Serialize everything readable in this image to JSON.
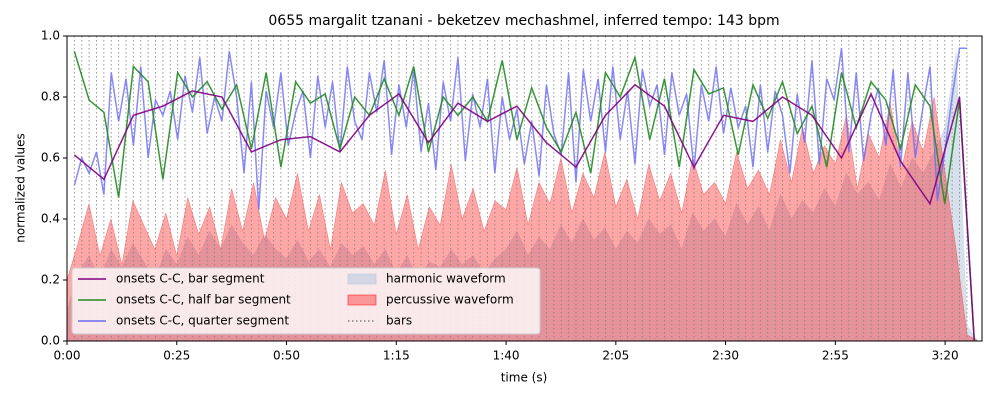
{
  "chart_data": {
    "type": "line",
    "title": "0655 margalit tzanani - beketzev mechashmel, inferred tempo: 143 bpm",
    "x_label": "time (s)",
    "y_label": "normalized values",
    "xlim": [
      0,
      208.4
    ],
    "ylim": [
      0,
      1
    ],
    "xticks": [
      {
        "value": 0,
        "label": "0:00"
      },
      {
        "value": 25,
        "label": "0:25"
      },
      {
        "value": 50,
        "label": "0:50"
      },
      {
        "value": 75,
        "label": "1:15"
      },
      {
        "value": 100,
        "label": "1:40"
      },
      {
        "value": 125,
        "label": "2:05"
      },
      {
        "value": 150,
        "label": "2:30"
      },
      {
        "value": 175,
        "label": "2:55"
      },
      {
        "value": 200,
        "label": "3:20"
      }
    ],
    "yticks": [
      {
        "value": 0,
        "label": "0.0"
      },
      {
        "value": 0.2,
        "label": "0.2"
      },
      {
        "value": 0.4,
        "label": "0.4"
      },
      {
        "value": 0.6,
        "label": "0.6"
      },
      {
        "value": 0.8,
        "label": "0.8"
      },
      {
        "value": 1,
        "label": "1.0"
      }
    ],
    "legend": "lower left",
    "series": [
      {
        "name": "onsets C-C, bar segment",
        "style": "line",
        "color": "#800080",
        "x": [
          1.68,
          8.4,
          15.12,
          21.84,
          28.56,
          35.28,
          42,
          48.72,
          55.44,
          62.16,
          68.88,
          75.6,
          82.32,
          89.04,
          95.76,
          102.48,
          109.2,
          115.92,
          122.64,
          129.36,
          136.08,
          142.8,
          149.52,
          156.24,
          162.96,
          169.68,
          176.4,
          183.12,
          189.84,
          196.56,
          203.28,
          206.64
        ],
        "values": [
          0.61,
          0.53,
          0.74,
          0.77,
          0.82,
          0.8,
          0.62,
          0.66,
          0.67,
          0.62,
          0.74,
          0.81,
          0.65,
          0.78,
          0.72,
          0.77,
          0.65,
          0.57,
          0.74,
          0.84,
          0.77,
          0.57,
          0.74,
          0.72,
          0.8,
          0.74,
          0.6,
          0.81,
          0.59,
          0.45,
          0.8,
          0
        ]
      },
      {
        "name": "onsets C-C, half bar segment",
        "style": "line",
        "color": "#228b22",
        "x": [
          1.68,
          5.04,
          8.4,
          11.76,
          15.12,
          18.48,
          21.84,
          25.2,
          28.56,
          31.92,
          35.28,
          38.64,
          42,
          45.36,
          48.72,
          52.08,
          55.44,
          58.8,
          62.16,
          65.52,
          68.88,
          72.24,
          75.6,
          78.96,
          82.32,
          85.68,
          89.04,
          92.4,
          95.76,
          99.12,
          102.48,
          105.84,
          109.2,
          112.56,
          115.92,
          119.28,
          122.64,
          126,
          129.36,
          132.72,
          136.08,
          139.44,
          142.8,
          146.16,
          149.52,
          152.88,
          156.24,
          159.6,
          162.96,
          166.32,
          169.68,
          173.04,
          176.4,
          179.76,
          183.12,
          186.48,
          189.84,
          193.2,
          196.56,
          199.92,
          203.28,
          206.64
        ],
        "values": [
          0.95,
          0.79,
          0.75,
          0.47,
          0.9,
          0.85,
          0.53,
          0.88,
          0.8,
          0.85,
          0.76,
          0.84,
          0.63,
          0.88,
          0.57,
          0.85,
          0.78,
          0.81,
          0.63,
          0.8,
          0.74,
          0.86,
          0.74,
          0.9,
          0.62,
          0.8,
          0.74,
          0.8,
          0.72,
          0.92,
          0.66,
          0.83,
          0.7,
          0.62,
          0.75,
          0.55,
          0.88,
          0.8,
          0.93,
          0.66,
          0.86,
          0.57,
          0.89,
          0.81,
          0.83,
          0.61,
          0.84,
          0.73,
          0.85,
          0.68,
          0.77,
          0.57,
          0.88,
          0.7,
          0.85,
          0.79,
          0.63,
          0.84,
          0.77,
          0.45,
          0.79,
          0
        ]
      },
      {
        "name": "onsets C-C, quarter segment",
        "style": "line",
        "color": "#6b6bf5",
        "x": [
          1.68,
          3.36,
          5.04,
          6.72,
          8.4,
          10.08,
          11.76,
          13.44,
          15.12,
          16.8,
          18.48,
          20.16,
          21.84,
          23.52,
          25.2,
          26.88,
          28.56,
          30.24,
          31.92,
          33.6,
          35.28,
          36.96,
          38.64,
          40.32,
          42,
          43.68,
          45.36,
          47.04,
          48.72,
          50.4,
          52.08,
          53.76,
          55.44,
          57.12,
          58.8,
          60.48,
          62.16,
          63.84,
          65.52,
          67.2,
          68.88,
          70.56,
          72.24,
          73.92,
          75.6,
          77.28,
          78.96,
          80.64,
          82.32,
          84,
          85.68,
          87.36,
          89.04,
          90.72,
          92.4,
          94.08,
          95.76,
          97.44,
          99.12,
          100.8,
          102.48,
          104.16,
          105.84,
          107.52,
          109.2,
          110.88,
          112.56,
          114.24,
          115.92,
          117.6,
          119.28,
          120.96,
          122.64,
          124.32,
          126,
          127.68,
          129.36,
          131.04,
          132.72,
          134.4,
          136.08,
          137.76,
          139.44,
          141.12,
          142.8,
          144.48,
          146.16,
          147.84,
          149.52,
          151.2,
          152.88,
          154.56,
          156.24,
          157.92,
          159.6,
          161.28,
          162.96,
          164.64,
          166.32,
          168,
          169.68,
          171.36,
          173.04,
          174.72,
          176.4,
          178.08,
          179.76,
          181.44,
          183.12,
          184.8,
          186.48,
          188.16,
          189.84,
          191.52,
          193.2,
          194.88,
          196.56,
          198.24,
          199.92,
          201.6,
          203.28,
          204.96
        ],
        "values": [
          0.51,
          0.6,
          0.55,
          0.62,
          0.48,
          0.88,
          0.72,
          0.86,
          0.64,
          0.9,
          0.6,
          0.79,
          0.74,
          0.82,
          0.66,
          0.87,
          0.75,
          0.93,
          0.68,
          0.8,
          0.72,
          0.95,
          0.8,
          0.55,
          0.85,
          0.43,
          0.82,
          0.7,
          0.88,
          0.64,
          0.75,
          0.82,
          0.6,
          0.87,
          0.7,
          0.85,
          0.62,
          0.9,
          0.72,
          0.66,
          0.88,
          0.75,
          0.92,
          0.61,
          0.84,
          0.7,
          0.89,
          0.62,
          0.78,
          0.56,
          0.85,
          0.72,
          0.93,
          0.59,
          0.81,
          0.7,
          0.86,
          0.55,
          0.8,
          0.66,
          0.76,
          0.58,
          0.72,
          0.54,
          0.84,
          0.68,
          0.61,
          0.88,
          0.52,
          0.89,
          0.72,
          0.86,
          0.62,
          0.9,
          0.66,
          0.82,
          0.58,
          0.89,
          0.77,
          0.84,
          0.61,
          0.88,
          0.74,
          0.81,
          0.56,
          0.84,
          0.72,
          0.9,
          0.68,
          0.83,
          0.7,
          0.77,
          0.57,
          0.84,
          0.62,
          0.82,
          0.74,
          0.55,
          0.81,
          0.65,
          0.92,
          0.58,
          0.86,
          0.79,
          0.96,
          0.62,
          0.88,
          0.59,
          0.74,
          0.83,
          0.64,
          0.89,
          0.57,
          0.88,
          0.6,
          0.76,
          0.9,
          0.46,
          0.62,
          0.8,
          0.96,
          0.96
        ]
      },
      {
        "name": "harmonic waveform",
        "style": "area",
        "color": "#b0c4de",
        "x": [
          0,
          2.5,
          5,
          7.5,
          10,
          12.5,
          15,
          17.5,
          20,
          22.5,
          25,
          27.5,
          30,
          32.5,
          35,
          37.5,
          40,
          42.5,
          45,
          47.5,
          50,
          52.5,
          55,
          57.5,
          60,
          62.5,
          65,
          67.5,
          70,
          72.5,
          75,
          77.5,
          80,
          82.5,
          85,
          87.5,
          90,
          92.5,
          95,
          97.5,
          100,
          102.5,
          105,
          107.5,
          110,
          112.5,
          115,
          117.5,
          120,
          122.5,
          125,
          127.5,
          130,
          132.5,
          135,
          137.5,
          140,
          142.5,
          145,
          147.5,
          150,
          152.5,
          155,
          157.5,
          160,
          162.5,
          165,
          167.5,
          170,
          172.5,
          175,
          177.5,
          180,
          182.5,
          185,
          187.5,
          190,
          192.5,
          195,
          197.5,
          200,
          202.5,
          205,
          207.5
        ],
        "values": [
          0.1,
          0.22,
          0.28,
          0.2,
          0.3,
          0.24,
          0.32,
          0.26,
          0.2,
          0.3,
          0.25,
          0.34,
          0.28,
          0.36,
          0.3,
          0.38,
          0.32,
          0.28,
          0.35,
          0.3,
          0.27,
          0.33,
          0.26,
          0.3,
          0.24,
          0.32,
          0.28,
          0.31,
          0.25,
          0.3,
          0.22,
          0.28,
          0.2,
          0.26,
          0.24,
          0.3,
          0.25,
          0.28,
          0.22,
          0.27,
          0.3,
          0.36,
          0.28,
          0.34,
          0.3,
          0.38,
          0.32,
          0.4,
          0.33,
          0.37,
          0.3,
          0.36,
          0.32,
          0.4,
          0.35,
          0.38,
          0.3,
          0.42,
          0.36,
          0.4,
          0.34,
          0.45,
          0.38,
          0.44,
          0.36,
          0.48,
          0.4,
          0.46,
          0.42,
          0.5,
          0.44,
          0.55,
          0.48,
          0.52,
          0.46,
          0.58,
          0.5,
          0.6,
          0.55,
          0.62,
          0.7,
          0.95,
          0.05,
          0
        ]
      },
      {
        "name": "percussive waveform",
        "style": "area",
        "color": "#ff0000",
        "x": [
          0,
          2.5,
          5,
          7.5,
          10,
          12.5,
          15,
          17.5,
          20,
          22.5,
          25,
          27.5,
          30,
          32.5,
          35,
          37.5,
          40,
          42.5,
          45,
          47.5,
          50,
          52.5,
          55,
          57.5,
          60,
          62.5,
          65,
          67.5,
          70,
          72.5,
          75,
          77.5,
          80,
          82.5,
          85,
          87.5,
          90,
          92.5,
          95,
          97.5,
          100,
          102.5,
          105,
          107.5,
          110,
          112.5,
          115,
          117.5,
          120,
          122.5,
          125,
          127.5,
          130,
          132.5,
          135,
          137.5,
          140,
          142.5,
          145,
          147.5,
          150,
          152.5,
          155,
          157.5,
          160,
          162.5,
          165,
          167.5,
          170,
          172.5,
          175,
          177.5,
          180,
          182.5,
          185,
          187.5,
          190,
          192.5,
          195,
          197.5,
          200,
          202.5,
          205,
          207.5
        ],
        "values": [
          0.2,
          0.32,
          0.45,
          0.28,
          0.4,
          0.25,
          0.46,
          0.38,
          0.3,
          0.42,
          0.28,
          0.47,
          0.35,
          0.44,
          0.3,
          0.5,
          0.36,
          0.52,
          0.33,
          0.47,
          0.4,
          0.55,
          0.36,
          0.48,
          0.3,
          0.52,
          0.42,
          0.45,
          0.38,
          0.56,
          0.35,
          0.48,
          0.3,
          0.44,
          0.38,
          0.58,
          0.4,
          0.5,
          0.36,
          0.46,
          0.43,
          0.57,
          0.38,
          0.52,
          0.45,
          0.6,
          0.42,
          0.55,
          0.47,
          0.62,
          0.44,
          0.53,
          0.4,
          0.58,
          0.46,
          0.55,
          0.42,
          0.6,
          0.48,
          0.52,
          0.45,
          0.62,
          0.5,
          0.56,
          0.48,
          0.66,
          0.52,
          0.7,
          0.55,
          0.64,
          0.58,
          0.74,
          0.5,
          0.68,
          0.6,
          0.78,
          0.56,
          0.72,
          0.62,
          0.8,
          0.55,
          0.3,
          0.02,
          0
        ]
      }
    ],
    "bars": {
      "name": "bars",
      "color": "#808080",
      "x": [
        0,
        1.68,
        3.36,
        5.04,
        6.72,
        8.4,
        10.08,
        11.76,
        13.44,
        15.12,
        16.8,
        18.48,
        20.16,
        21.84,
        23.52,
        25.2,
        26.88,
        28.56,
        30.24,
        31.92,
        33.6,
        35.28,
        36.96,
        38.64,
        40.32,
        42,
        43.68,
        45.36,
        47.04,
        48.72,
        50.4,
        52.08,
        53.76,
        55.44,
        57.12,
        58.8,
        60.48,
        62.16,
        63.84,
        65.52,
        67.2,
        68.88,
        70.56,
        72.24,
        73.92,
        75.6,
        77.28,
        78.96,
        80.64,
        82.32,
        84,
        85.68,
        87.36,
        89.04,
        90.72,
        92.4,
        94.08,
        95.76,
        97.44,
        99.12,
        100.8,
        102.48,
        104.16,
        105.84,
        107.52,
        109.2,
        110.88,
        112.56,
        114.24,
        115.92,
        117.6,
        119.28,
        120.96,
        122.64,
        124.32,
        126,
        127.68,
        129.36,
        131.04,
        132.72,
        134.4,
        136.08,
        137.76,
        139.44,
        141.12,
        142.8,
        144.48,
        146.16,
        147.84,
        149.52,
        151.2,
        152.88,
        154.56,
        156.24,
        157.92,
        159.6,
        161.28,
        162.96,
        164.64,
        166.32,
        168,
        169.68,
        171.36,
        173.04,
        174.72,
        176.4,
        178.08,
        179.76,
        181.44,
        183.12,
        184.8,
        186.48,
        188.16,
        189.84,
        191.52,
        193.2,
        194.88,
        196.56,
        198.24,
        199.92,
        201.6,
        203.28,
        204.96
      ]
    }
  }
}
